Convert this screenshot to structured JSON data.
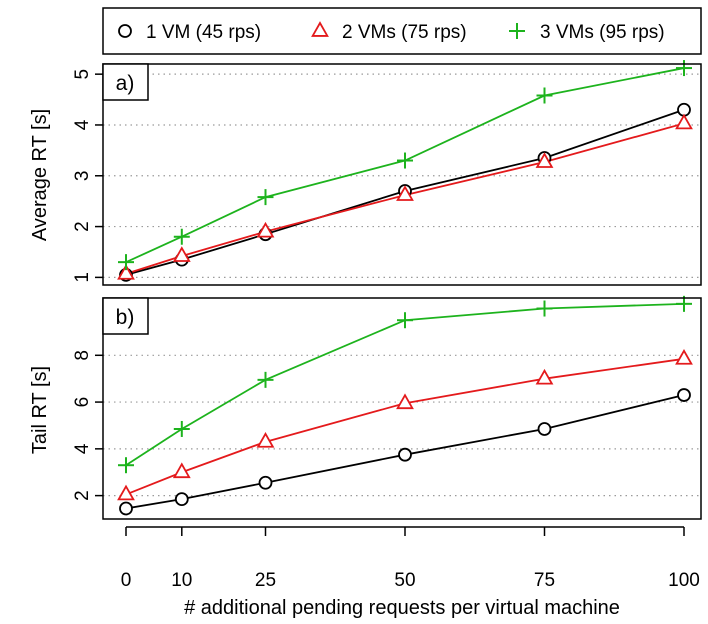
{
  "chart_data": {
    "type": "line",
    "x": [
      0,
      10,
      25,
      50,
      75,
      100
    ],
    "x_tick_labels": [
      "0",
      "10",
      "25",
      "50",
      "75",
      "100"
    ],
    "xlabel": "# additional pending requests per virtual machine",
    "xlim": [
      0,
      100
    ],
    "legend": {
      "placement": "top",
      "entries": [
        "1 VM (45 rps)",
        "2 VMs (75 rps)",
        "3 VMs (95 rps)"
      ]
    },
    "series_styles": [
      {
        "color": "#000000",
        "marker": "circle"
      },
      {
        "color": "#e41a1c",
        "marker": "triangle"
      },
      {
        "color": "#1db31d",
        "marker": "plus"
      }
    ],
    "grid": "horizontal dotted",
    "panels": [
      {
        "label": "a)",
        "ylabel": "Average RT [s]",
        "ylim": [
          0.85,
          5.2
        ],
        "yticks": [
          1,
          2,
          3,
          4,
          5
        ],
        "y_tick_labels": [
          "1",
          "2",
          "3",
          "4",
          "5"
        ],
        "series": [
          {
            "name": "1 VM (45 rps)",
            "values": [
              1.05,
              1.35,
              1.85,
              2.7,
              3.35,
              4.3
            ]
          },
          {
            "name": "2 VMs (75 rps)",
            "values": [
              1.07,
              1.42,
              1.9,
              2.62,
              3.27,
              4.03
            ]
          },
          {
            "name": "3 VMs (95 rps)",
            "values": [
              1.3,
              1.8,
              2.58,
              3.3,
              4.58,
              5.12
            ]
          }
        ]
      },
      {
        "label": "b)",
        "ylabel": "Tail RT [s]",
        "ylim": [
          1.0,
          10.45
        ],
        "yticks": [
          2,
          4,
          6,
          8
        ],
        "y_tick_labels": [
          "2",
          "4",
          "6",
          "8"
        ],
        "series": [
          {
            "name": "1 VM (45 rps)",
            "values": [
              1.45,
              1.85,
              2.55,
              3.75,
              4.85,
              6.3
            ]
          },
          {
            "name": "2 VMs (75 rps)",
            "values": [
              2.05,
              3.0,
              4.3,
              5.95,
              7.0,
              7.85
            ]
          },
          {
            "name": "3 VMs (95 rps)",
            "values": [
              3.3,
              4.85,
              6.95,
              9.5,
              10.0,
              10.2
            ]
          }
        ]
      }
    ]
  }
}
